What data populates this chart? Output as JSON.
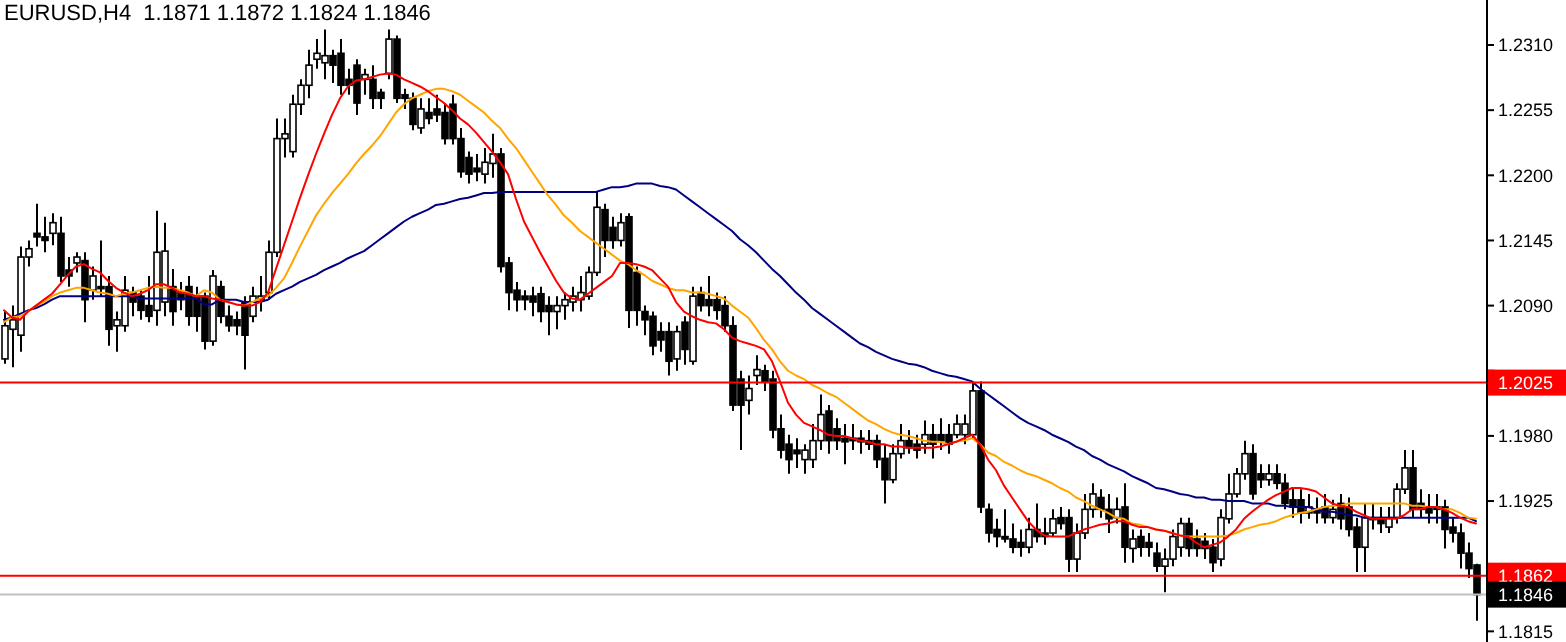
{
  "chart_data": {
    "type": "candlestick",
    "title": "EURUSD,H4  1.1871 1.1872 1.1824 1.1846",
    "categories": [
      null,
      null,
      null,
      null,
      null,
      null,
      null,
      null,
      null,
      null,
      null,
      null,
      null,
      null,
      null,
      null,
      null,
      null,
      null,
      null,
      null,
      null,
      null,
      null,
      null,
      null,
      null,
      null,
      null,
      null,
      null,
      null,
      null,
      null,
      null,
      null,
      null,
      null,
      null,
      null,
      null,
      null,
      null,
      null,
      null,
      null,
      null,
      null,
      null,
      null,
      null,
      null,
      null,
      null,
      null,
      null,
      null,
      null,
      null,
      null,
      null,
      null,
      null,
      null,
      null,
      null,
      null,
      null,
      null,
      null,
      null,
      null,
      null,
      null,
      null,
      null,
      null,
      null,
      null,
      null,
      null,
      null,
      null,
      null,
      null,
      null,
      null,
      null,
      null,
      null,
      null,
      null,
      null,
      null,
      null,
      null,
      null,
      null,
      null,
      null,
      null,
      null,
      null,
      null,
      null,
      null,
      null,
      null,
      null,
      null,
      null,
      null,
      null,
      null,
      null,
      null,
      null,
      null,
      null,
      null,
      null,
      null,
      null,
      null,
      null,
      null,
      null,
      null,
      null,
      null,
      null,
      null,
      null,
      null,
      null,
      null,
      null,
      null,
      null,
      null,
      null,
      null,
      null,
      null,
      null,
      null,
      null,
      null,
      null,
      null,
      null,
      null,
      null,
      null,
      null,
      null,
      null,
      null,
      null,
      null,
      null,
      null,
      null,
      null,
      null,
      null,
      null,
      null,
      null,
      null,
      null,
      null,
      null,
      null,
      null,
      null,
      null,
      null,
      null,
      null,
      null,
      null,
      null,
      null,
      null
    ],
    "ohlc": [
      [
        1.2045,
        1.2085,
        1.2041,
        1.2073
      ],
      [
        1.207,
        1.209,
        1.2038,
        1.2078
      ],
      [
        1.2065,
        1.214,
        1.2051,
        1.2131
      ],
      [
        1.2131,
        1.2145,
        1.2123,
        1.2138
      ],
      [
        1.2151,
        1.2176,
        1.214,
        1.2148
      ],
      [
        1.2148,
        1.2165,
        1.2135,
        1.2145
      ],
      [
        1.2151,
        1.2168,
        1.2141,
        1.216
      ],
      [
        1.2151,
        1.2165,
        1.211,
        1.2115
      ],
      [
        1.212,
        1.2131,
        1.2106,
        1.2115
      ],
      [
        1.2126,
        1.2135,
        1.2118,
        1.2131
      ],
      [
        1.2128,
        1.2135,
        1.2076,
        1.2095
      ],
      [
        1.2103,
        1.2123,
        1.2095,
        1.2115
      ],
      [
        1.2106,
        1.2145,
        1.2098,
        1.2105
      ],
      [
        1.2106,
        1.2115,
        1.2056,
        1.207
      ],
      [
        1.2073,
        1.2085,
        1.2051,
        1.2078
      ],
      [
        1.2073,
        1.2115,
        1.2068,
        1.2103
      ],
      [
        1.2101,
        1.2106,
        1.2081,
        1.2093
      ],
      [
        1.2098,
        1.2103,
        1.2078,
        1.2086
      ],
      [
        1.209,
        1.2115,
        1.2076,
        1.2081
      ],
      [
        1.2086,
        1.217,
        1.2073,
        1.2135
      ],
      [
        1.2093,
        1.216,
        1.2081,
        1.2136
      ],
      [
        1.2106,
        1.2121,
        1.2073,
        1.2085
      ],
      [
        1.2101,
        1.211,
        1.2086,
        1.2095
      ],
      [
        1.2106,
        1.2115,
        1.2073,
        1.2081
      ],
      [
        1.2098,
        1.2106,
        1.2068,
        1.2081
      ],
      [
        1.2098,
        1.2101,
        1.2053,
        1.206
      ],
      [
        1.206,
        1.212,
        1.2056,
        1.2115
      ],
      [
        1.2106,
        1.2111,
        1.2075,
        1.2081
      ],
      [
        1.2081,
        1.209,
        1.2068,
        1.2073
      ],
      [
        1.2078,
        1.2085,
        1.2065,
        1.2073
      ],
      [
        1.2093,
        1.2098,
        1.2036,
        1.2065
      ],
      [
        1.2081,
        1.2106,
        1.2076,
        1.2098
      ],
      [
        1.2095,
        1.2115,
        1.2085,
        1.2098
      ],
      [
        1.2101,
        1.2145,
        1.2095,
        1.2135
      ],
      [
        1.2135,
        1.2248,
        1.2131,
        1.2231
      ],
      [
        1.2231,
        1.2248,
        1.2215,
        1.2235
      ],
      [
        1.222,
        1.2268,
        1.2215,
        1.226
      ],
      [
        1.226,
        1.2281,
        1.2251,
        1.2276
      ],
      [
        1.2276,
        1.2306,
        1.2265,
        1.2293
      ],
      [
        1.2298,
        1.2315,
        1.229,
        1.2303
      ],
      [
        1.2295,
        1.2323,
        1.2281,
        1.2301
      ],
      [
        1.2301,
        1.2306,
        1.2278,
        1.2293
      ],
      [
        1.2303,
        1.2315,
        1.2268,
        1.2276
      ],
      [
        1.2281,
        1.229,
        1.2268,
        1.2276
      ],
      [
        1.2293,
        1.2298,
        1.2251,
        1.2261
      ],
      [
        1.2281,
        1.229,
        1.2268,
        1.2285
      ],
      [
        1.2281,
        1.2293,
        1.2256,
        1.2265
      ],
      [
        1.227,
        1.2273,
        1.2256,
        1.2265
      ],
      [
        1.2286,
        1.2323,
        1.2281,
        1.2315
      ],
      [
        1.2315,
        1.2318,
        1.2261,
        1.2265
      ],
      [
        1.2268,
        1.2273,
        1.2256,
        1.2265
      ],
      [
        1.2265,
        1.227,
        1.2238,
        1.2243
      ],
      [
        1.224,
        1.2265,
        1.2235,
        1.2256
      ],
      [
        1.2253,
        1.2265,
        1.2243,
        1.2248
      ],
      [
        1.2256,
        1.2268,
        1.2245,
        1.2251
      ],
      [
        1.2253,
        1.2261,
        1.2226,
        1.2231
      ],
      [
        1.226,
        1.2268,
        1.2226,
        1.2231
      ],
      [
        1.2231,
        1.224,
        1.2198,
        1.2203
      ],
      [
        1.2215,
        1.222,
        1.2193,
        1.2201
      ],
      [
        1.2206,
        1.2218,
        1.2195,
        1.2203
      ],
      [
        1.2201,
        1.2223,
        1.2193,
        1.2211
      ],
      [
        1.221,
        1.2235,
        1.2198,
        1.2218
      ],
      [
        1.2218,
        1.2223,
        1.2118,
        1.2123
      ],
      [
        1.2126,
        1.2131,
        1.2086,
        1.2101
      ],
      [
        1.2103,
        1.211,
        1.2085,
        1.2095
      ],
      [
        1.2098,
        1.2103,
        1.2086,
        1.2095
      ],
      [
        1.2098,
        1.2106,
        1.2081,
        1.2093
      ],
      [
        1.21,
        1.2106,
        1.2076,
        1.2085
      ],
      [
        1.209,
        1.2098,
        1.2065,
        1.2085
      ],
      [
        1.2085,
        1.2098,
        1.207,
        1.209
      ],
      [
        1.209,
        1.2101,
        1.2078,
        1.2095
      ],
      [
        1.2093,
        1.2106,
        1.2085,
        1.2098
      ],
      [
        1.2095,
        1.2115,
        1.2085,
        1.2101
      ],
      [
        1.2098,
        1.2123,
        1.2095,
        1.2118
      ],
      [
        1.2118,
        1.2186,
        1.2115,
        1.2173
      ],
      [
        1.2171,
        1.2176,
        1.2131,
        1.2145
      ],
      [
        1.2156,
        1.2165,
        1.2138,
        1.2145
      ],
      [
        1.2145,
        1.2168,
        1.214,
        1.216
      ],
      [
        1.2165,
        1.2168,
        1.2071,
        1.2086
      ],
      [
        1.2118,
        1.2123,
        1.2073,
        1.2086
      ],
      [
        1.2085,
        1.209,
        1.2065,
        1.2078
      ],
      [
        1.2081,
        1.2085,
        1.2048,
        1.2056
      ],
      [
        1.2068,
        1.2076,
        1.2051,
        1.2061
      ],
      [
        1.2068,
        1.2076,
        1.2031,
        1.2043
      ],
      [
        1.2045,
        1.2073,
        1.2035,
        1.2068
      ],
      [
        1.2076,
        1.2081,
        1.204,
        1.2053
      ],
      [
        1.2043,
        1.2106,
        1.204,
        1.2098
      ],
      [
        1.2101,
        1.2106,
        1.2085,
        1.209
      ],
      [
        1.2095,
        1.2115,
        1.2081,
        1.209
      ],
      [
        1.2095,
        1.2101,
        1.2078,
        1.2086
      ],
      [
        1.209,
        1.2098,
        1.2068,
        1.2073
      ],
      [
        1.2073,
        1.2081,
        1.2001,
        1.2006
      ],
      [
        1.2028,
        1.2035,
        1.1968,
        1.2006
      ],
      [
        1.201,
        1.2031,
        1.1998,
        1.202
      ],
      [
        1.2031,
        1.2048,
        1.2023,
        1.2036
      ],
      [
        1.2035,
        1.204,
        1.2018,
        1.2026
      ],
      [
        1.2028,
        1.2035,
        1.1978,
        1.1985
      ],
      [
        1.1986,
        1.1998,
        1.1961,
        1.1968
      ],
      [
        1.1973,
        1.1981,
        1.1948,
        1.196
      ],
      [
        1.1968,
        1.1978,
        1.1953,
        1.1965
      ],
      [
        1.196,
        1.1973,
        1.1948,
        1.1968
      ],
      [
        1.196,
        1.199,
        1.1953,
        1.1976
      ],
      [
        1.1976,
        1.2015,
        1.1968,
        1.1998
      ],
      [
        1.2001,
        1.2006,
        1.1965,
        1.1976
      ],
      [
        1.1986,
        1.1995,
        1.1968,
        1.1976
      ],
      [
        1.1978,
        1.199,
        1.1956,
        1.1975
      ],
      [
        1.1978,
        1.199,
        1.1968,
        1.1976
      ],
      [
        1.1978,
        1.1985,
        1.1965,
        1.1975
      ],
      [
        1.1976,
        1.1985,
        1.1968,
        1.1973
      ],
      [
        1.1976,
        1.1981,
        1.1953,
        1.196
      ],
      [
        1.1961,
        1.1973,
        1.1923,
        1.1943
      ],
      [
        1.1943,
        1.1973,
        1.194,
        1.1965
      ],
      [
        1.1965,
        1.199,
        1.1961,
        1.1976
      ],
      [
        1.1976,
        1.1985,
        1.1965,
        1.197
      ],
      [
        1.1973,
        1.1981,
        1.1961,
        1.1968
      ],
      [
        1.1973,
        1.1993,
        1.1965,
        1.1981
      ],
      [
        1.1981,
        1.199,
        1.1961,
        1.1973
      ],
      [
        1.1981,
        1.1995,
        1.1968,
        1.1976
      ],
      [
        1.1981,
        1.199,
        1.1965,
        1.1973
      ],
      [
        1.1981,
        1.1998,
        1.1978,
        1.199
      ],
      [
        1.1981,
        1.1998,
        1.1973,
        1.199
      ],
      [
        1.1981,
        1.2026,
        1.1978,
        1.2018
      ],
      [
        1.2018,
        1.2026,
        1.1915,
        1.192
      ],
      [
        1.1918,
        1.1923,
        1.189,
        1.1898
      ],
      [
        1.1901,
        1.191,
        1.1886,
        1.1895
      ],
      [
        1.1895,
        1.1918,
        1.189,
        1.1893
      ],
      [
        1.1893,
        1.1906,
        1.1881,
        1.1886
      ],
      [
        1.189,
        1.1901,
        1.1878,
        1.1886
      ],
      [
        1.1886,
        1.1911,
        1.1881,
        1.1901
      ],
      [
        1.1901,
        1.1923,
        1.189,
        1.1895
      ],
      [
        1.1898,
        1.1911,
        1.1888,
        1.1895
      ],
      [
        1.1898,
        1.1918,
        1.1895,
        1.191
      ],
      [
        1.1911,
        1.192,
        1.1901,
        1.1906
      ],
      [
        1.1911,
        1.1918,
        1.1865,
        1.1876
      ],
      [
        1.1876,
        1.1906,
        1.1865,
        1.1898
      ],
      [
        1.1898,
        1.1931,
        1.1893,
        1.1918
      ],
      [
        1.1918,
        1.194,
        1.1911,
        1.1931
      ],
      [
        1.1928,
        1.1935,
        1.1911,
        1.1918
      ],
      [
        1.1918,
        1.1931,
        1.1898,
        1.191
      ],
      [
        1.1911,
        1.1928,
        1.1906,
        1.1918
      ],
      [
        1.192,
        1.194,
        1.1873,
        1.1886
      ],
      [
        1.1885,
        1.1901,
        1.1873,
        1.1893
      ],
      [
        1.1895,
        1.1901,
        1.1878,
        1.1886
      ],
      [
        1.189,
        1.1898,
        1.1878,
        1.1886
      ],
      [
        1.1881,
        1.189,
        1.1865,
        1.187
      ],
      [
        1.187,
        1.1885,
        1.1848,
        1.1876
      ],
      [
        1.1876,
        1.1901,
        1.187,
        1.1895
      ],
      [
        1.1886,
        1.1911,
        1.1878,
        1.1906
      ],
      [
        1.1906,
        1.1911,
        1.1878,
        1.1885
      ],
      [
        1.1893,
        1.1901,
        1.1878,
        1.1885
      ],
      [
        1.1891,
        1.1898,
        1.1876,
        1.1885
      ],
      [
        1.1886,
        1.1893,
        1.1865,
        1.1873
      ],
      [
        1.1876,
        1.1918,
        1.187,
        1.1911
      ],
      [
        1.191,
        1.1948,
        1.1906,
        1.1931
      ],
      [
        1.1931,
        1.1953,
        1.1928,
        1.1948
      ],
      [
        1.1948,
        1.1976,
        1.1943,
        1.1965
      ],
      [
        1.1965,
        1.1973,
        1.1926,
        1.1931
      ],
      [
        1.1948,
        1.1956,
        1.1936,
        1.1943
      ],
      [
        1.1943,
        1.1956,
        1.1938,
        1.1948
      ],
      [
        1.1948,
        1.1956,
        1.1935,
        1.194
      ],
      [
        1.194,
        1.1948,
        1.1918,
        1.1923
      ],
      [
        1.1926,
        1.1936,
        1.1911,
        1.192
      ],
      [
        1.1926,
        1.1935,
        1.1906,
        1.1915
      ],
      [
        1.1915,
        1.1931,
        1.191,
        1.192
      ],
      [
        1.1918,
        1.1928,
        1.1906,
        1.1915
      ],
      [
        1.192,
        1.1931,
        1.1906,
        1.1911
      ],
      [
        1.1911,
        1.1926,
        1.1906,
        1.1918
      ],
      [
        1.1923,
        1.1931,
        1.1901,
        1.191
      ],
      [
        1.192,
        1.1928,
        1.1895,
        1.1901
      ],
      [
        1.1903,
        1.1911,
        1.1865,
        1.1886
      ],
      [
        1.1886,
        1.1923,
        1.1865,
        1.1911
      ],
      [
        1.1911,
        1.1923,
        1.1901,
        1.191
      ],
      [
        1.1911,
        1.192,
        1.1898,
        1.1906
      ],
      [
        1.1903,
        1.192,
        1.1898,
        1.1911
      ],
      [
        1.1911,
        1.194,
        1.1906,
        1.1935
      ],
      [
        1.1935,
        1.1968,
        1.1931,
        1.1953
      ],
      [
        1.1953,
        1.1968,
        1.1911,
        1.1918
      ],
      [
        1.1923,
        1.1935,
        1.1911,
        1.1918
      ],
      [
        1.192,
        1.1931,
        1.1906,
        1.1915
      ],
      [
        1.192,
        1.1931,
        1.1906,
        1.1918
      ],
      [
        1.192,
        1.1926,
        1.1885,
        1.1901
      ],
      [
        1.1903,
        1.1911,
        1.189,
        1.1898
      ],
      [
        1.1898,
        1.1906,
        1.1868,
        1.1881
      ],
      [
        1.1881,
        1.189,
        1.186,
        1.1868
      ],
      [
        1.1871,
        1.1872,
        1.1824,
        1.1846
      ]
    ],
    "series": [
      {
        "type": "line",
        "color": "#ff0000",
        "values": [
          1.2086,
          1.208,
          1.2078,
          1.2085,
          1.209,
          1.2095,
          1.21,
          1.2108,
          1.2116,
          1.2123,
          1.2125,
          1.2121,
          1.2118,
          1.2111,
          1.2105,
          1.2101,
          1.2098,
          1.21,
          1.2103,
          1.2108,
          1.2108,
          1.2105,
          1.2101,
          1.21,
          1.2098,
          1.2098,
          1.2096,
          1.2095,
          1.2093,
          1.2091,
          1.209,
          1.209,
          1.2093,
          1.2101,
          1.2121,
          1.2141,
          1.2161,
          1.2181,
          1.22,
          1.2218,
          1.2235,
          1.2251,
          1.2265,
          1.2275,
          1.228,
          1.2281,
          1.2283,
          1.2285,
          1.2286,
          1.2285,
          1.2281,
          1.2278,
          1.2275,
          1.2271,
          1.2266,
          1.2261,
          1.2255,
          1.2248,
          1.2243,
          1.2236,
          1.2228,
          1.222,
          1.2211,
          1.2201,
          1.218,
          1.2161,
          1.2148,
          1.2135,
          1.2123,
          1.2111,
          1.2101,
          1.2096,
          1.2095,
          1.21,
          1.2105,
          1.211,
          1.2115,
          1.2126,
          1.2126,
          1.2125,
          1.2123,
          1.212,
          1.2113,
          1.2106,
          1.2093,
          1.2085,
          1.2081,
          1.2078,
          1.2076,
          1.2075,
          1.207,
          1.2063,
          1.206,
          1.2058,
          1.2056,
          1.2053,
          1.2043,
          1.2026,
          1.2008,
          1.1998,
          1.1991,
          1.1988,
          1.1985,
          1.1981,
          1.198,
          1.198,
          1.1978,
          1.1976,
          1.1975,
          1.1973,
          1.1973,
          1.1971,
          1.1971,
          1.197,
          1.197,
          1.197,
          1.197,
          1.1971,
          1.1973,
          1.1975,
          1.1978,
          1.1981,
          1.1973,
          1.196,
          1.1951,
          1.1938,
          1.1928,
          1.1918,
          1.1908,
          1.1901,
          1.1896,
          1.1895,
          1.1895,
          1.1895,
          1.1898,
          1.1901,
          1.1903,
          1.1905,
          1.1906,
          1.1908,
          1.1908,
          1.1905,
          1.1903,
          1.1903,
          1.1901,
          1.19,
          1.1898,
          1.1896,
          1.1895,
          1.189,
          1.1886,
          1.1888,
          1.189,
          1.1895,
          1.1901,
          1.191,
          1.1916,
          1.1921,
          1.1926,
          1.193,
          1.1933,
          1.1936,
          1.1936,
          1.1935,
          1.1933,
          1.1928,
          1.1923,
          1.1921,
          1.192,
          1.1916,
          1.1913,
          1.191,
          1.191,
          1.191,
          1.191,
          1.1913,
          1.1918,
          1.1918,
          1.192,
          1.192,
          1.1918,
          1.1915,
          1.1911,
          1.1908,
          1.1906
        ]
      },
      {
        "type": "line",
        "color": "#ffa500",
        "values": [
          1.2076,
          1.208,
          1.2081,
          1.2085,
          1.209,
          1.2093,
          1.2098,
          1.2101,
          1.2103,
          1.2105,
          1.2105,
          1.2103,
          1.2101,
          1.21,
          1.2098,
          1.21,
          1.2101,
          1.2103,
          1.2105,
          1.2106,
          1.2105,
          1.2105,
          1.2103,
          1.2101,
          1.2098,
          1.2103,
          1.2101,
          1.2095,
          1.2093,
          1.2091,
          1.209,
          1.2093,
          1.2096,
          1.2098,
          1.2105,
          1.2113,
          1.2126,
          1.214,
          1.2153,
          1.2166,
          1.2176,
          1.2185,
          1.2193,
          1.2201,
          1.221,
          1.2218,
          1.2225,
          1.2233,
          1.2243,
          1.2253,
          1.226,
          1.2265,
          1.2268,
          1.2271,
          1.2273,
          1.2273,
          1.2271,
          1.2268,
          1.2263,
          1.2258,
          1.2253,
          1.2246,
          1.224,
          1.2231,
          1.2223,
          1.2213,
          1.2203,
          1.2193,
          1.2183,
          1.2175,
          1.2166,
          1.216,
          1.2153,
          1.2148,
          1.2143,
          1.2138,
          1.2133,
          1.2128,
          1.2125,
          1.212,
          1.2116,
          1.2111,
          1.2108,
          1.2105,
          1.2103,
          1.2103,
          1.2101,
          1.2101,
          1.21,
          1.2098,
          1.2096,
          1.209,
          1.2085,
          1.208,
          1.2071,
          1.2061,
          1.2053,
          1.2043,
          1.2035,
          1.2031,
          1.2028,
          1.2023,
          1.202,
          1.2016,
          1.2013,
          1.2008,
          1.2003,
          1.1998,
          1.1993,
          1.199,
          1.1986,
          1.1983,
          1.1981,
          1.198,
          1.1978,
          1.1976,
          1.1975,
          1.1975,
          1.1973,
          1.1975,
          1.1976,
          1.1978,
          1.1973,
          1.1966,
          1.1963,
          1.1958,
          1.1955,
          1.1951,
          1.1948,
          1.1946,
          1.1943,
          1.194,
          1.1936,
          1.1933,
          1.1928,
          1.1925,
          1.1921,
          1.1918,
          1.1915,
          1.1911,
          1.191,
          1.1906,
          1.1905,
          1.1903,
          1.1901,
          1.19,
          1.1898,
          1.1896,
          1.1895,
          1.1895,
          1.1895,
          1.1895,
          1.1895,
          1.1896,
          1.1898,
          1.1901,
          1.1903,
          1.1905,
          1.1906,
          1.1908,
          1.1911,
          1.1913,
          1.1915,
          1.1916,
          1.1918,
          1.192,
          1.1921,
          1.1921,
          1.1923,
          1.1923,
          1.1923,
          1.1923,
          1.1923,
          1.1923,
          1.1923,
          1.1923,
          1.1921,
          1.1921,
          1.192,
          1.192,
          1.1918,
          1.1918,
          1.1915,
          1.1911,
          1.191
        ]
      },
      {
        "type": "line",
        "color": "#000080",
        "values": [
          1.2078,
          1.208,
          1.2083,
          1.2086,
          1.2088,
          1.2091,
          1.2095,
          1.2098,
          1.2098,
          1.2098,
          1.2098,
          1.2098,
          1.2098,
          1.2098,
          1.2098,
          1.2098,
          1.2098,
          1.2096,
          1.2096,
          1.2096,
          1.2096,
          1.2096,
          1.2096,
          1.2096,
          1.2096,
          1.2091,
          1.2091,
          1.2095,
          1.2095,
          1.2095,
          1.2093,
          1.2093,
          1.2093,
          1.2095,
          1.21,
          1.2103,
          1.2106,
          1.211,
          1.2113,
          1.2116,
          1.212,
          1.2123,
          1.2126,
          1.213,
          1.2133,
          1.2136,
          1.2141,
          1.2146,
          1.2151,
          1.2156,
          1.2161,
          1.2165,
          1.2168,
          1.2171,
          1.2175,
          1.2176,
          1.2178,
          1.218,
          1.2181,
          1.2183,
          1.2185,
          1.2185,
          1.2186,
          1.2186,
          1.2186,
          1.2186,
          1.2186,
          1.2186,
          1.2186,
          1.2186,
          1.2186,
          1.2186,
          1.2186,
          1.2186,
          1.2186,
          1.2188,
          1.219,
          1.219,
          1.2191,
          1.2193,
          1.2193,
          1.2193,
          1.2191,
          1.219,
          1.2188,
          1.2183,
          1.2178,
          1.2173,
          1.2168,
          1.2163,
          1.2158,
          1.2153,
          1.2146,
          1.2141,
          1.2135,
          1.2128,
          1.2121,
          1.2115,
          1.2108,
          1.2101,
          1.2095,
          1.2088,
          1.2083,
          1.2078,
          1.2073,
          1.2068,
          1.2063,
          1.2058,
          1.2055,
          1.2051,
          1.2048,
          1.2045,
          1.2043,
          1.2041,
          1.204,
          1.2038,
          1.2035,
          1.2033,
          1.2031,
          1.203,
          1.2028,
          1.2026,
          1.202,
          1.2015,
          1.201,
          1.2005,
          1.2,
          1.1995,
          1.1991,
          1.1988,
          1.1985,
          1.1981,
          1.1978,
          1.1975,
          1.1971,
          1.1968,
          1.1963,
          1.196,
          1.1956,
          1.1953,
          1.195,
          1.1946,
          1.1943,
          1.194,
          1.1936,
          1.1935,
          1.1933,
          1.1931,
          1.193,
          1.1928,
          1.1928,
          1.1926,
          1.1926,
          1.1925,
          1.1925,
          1.1925,
          1.1923,
          1.1923,
          1.1923,
          1.1921,
          1.1921,
          1.192,
          1.192,
          1.192,
          1.1918,
          1.1916,
          1.1916,
          1.1915,
          1.1913,
          1.1913,
          1.1911,
          1.1911,
          1.1911,
          1.1911,
          1.1911,
          1.1911,
          1.1911,
          1.1911,
          1.1911,
          1.1911,
          1.1911,
          1.1911,
          1.1911,
          1.1911,
          1.1908
        ]
      }
    ],
    "ylim": [
      1.1806,
      1.2348
    ],
    "yticks": [
      {
        "value": 1.231,
        "label": "1.2310"
      },
      1.2255,
      {
        "value": 1.22,
        "label": "1.2200"
      },
      1.2145,
      {
        "value": 1.209,
        "label": "1.2090"
      },
      {
        "value": 1.2035,
        "label": null
      },
      {
        "value": 1.198,
        "label": "1.1980"
      },
      1.1925,
      {
        "value": 1.187,
        "label": null
      },
      1.1815
    ],
    "tick_labels": "y",
    "ref_lines": [
      {
        "axis": "y",
        "value": 1.2025,
        "label": "1.2025",
        "color": "#ff0000"
      },
      {
        "axis": "y",
        "value": 1.1862,
        "label": "1.1862",
        "color": "#ff0000"
      },
      {
        "axis": "y",
        "value": 1.1846,
        "label": "1.1846",
        "color": "#c0c0c0"
      }
    ]
  }
}
